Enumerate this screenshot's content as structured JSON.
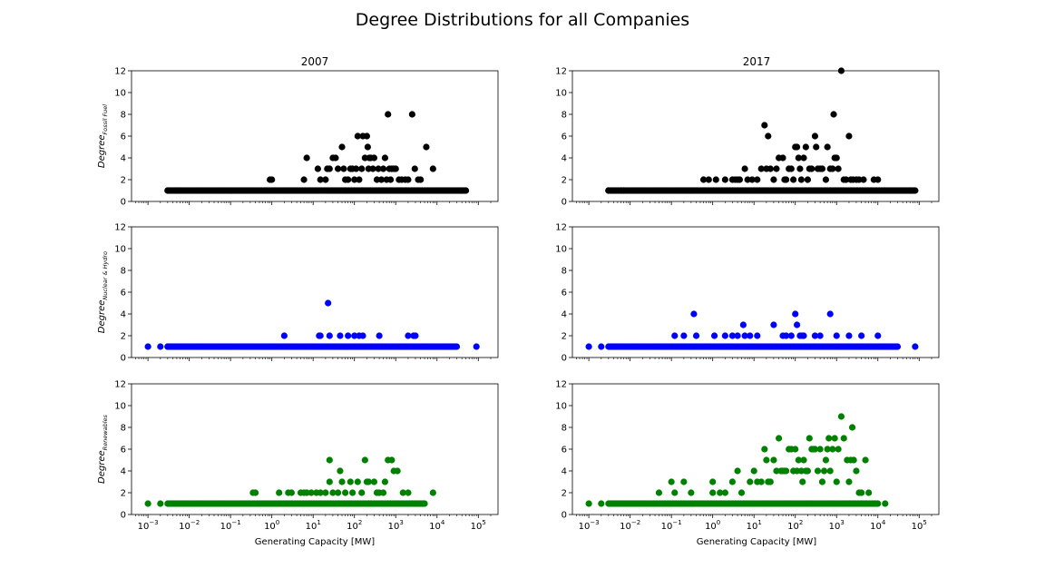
{
  "figure": {
    "suptitle": "Degree Distributions for all Companies",
    "column_titles": [
      "2007",
      "2017"
    ],
    "xlabel": "Generating Capacity [MW]",
    "row_ylabels": [
      {
        "base": "Degree",
        "sub": "Fossil Fuel"
      },
      {
        "base": "Degree",
        "sub": "Nuclear & Hydro"
      },
      {
        "base": "Degree",
        "sub": "Renewables"
      }
    ],
    "x_tick_labels": [
      {
        "base": "10",
        "exp": "−3"
      },
      {
        "base": "10",
        "exp": "−2"
      },
      {
        "base": "10",
        "exp": "−1"
      },
      {
        "base": "10",
        "exp": "0"
      },
      {
        "base": "10",
        "exp": "1"
      },
      {
        "base": "10",
        "exp": "2"
      },
      {
        "base": "10",
        "exp": "3"
      },
      {
        "base": "10",
        "exp": "4"
      },
      {
        "base": "10",
        "exp": "5"
      }
    ],
    "y_tick_labels": [
      "0",
      "2",
      "4",
      "6",
      "8",
      "10",
      "12"
    ]
  },
  "chart_data": [
    {
      "type": "scatter",
      "panel": "fossil-2007",
      "title": "2007",
      "ylabel": "Degree_{Fossil Fuel}",
      "xlabel": "",
      "xscale": "log",
      "xlim": [
        0.0004,
        300000
      ],
      "ylim": [
        0,
        12
      ],
      "color": "#000000",
      "baseline": {
        "y": 1,
        "xmin": 0.003,
        "xmax": 50000
      },
      "points": [
        [
          0.003,
          1
        ],
        [
          0.005,
          1
        ],
        [
          0.006,
          1
        ],
        [
          0.9,
          2
        ],
        [
          1,
          2
        ],
        [
          6,
          2
        ],
        [
          7,
          4
        ],
        [
          13,
          3
        ],
        [
          15,
          2
        ],
        [
          20,
          2
        ],
        [
          22,
          3
        ],
        [
          25,
          3
        ],
        [
          30,
          4
        ],
        [
          35,
          4
        ],
        [
          40,
          3
        ],
        [
          50,
          5
        ],
        [
          55,
          3
        ],
        [
          60,
          2
        ],
        [
          70,
          2
        ],
        [
          80,
          3
        ],
        [
          90,
          3
        ],
        [
          100,
          2
        ],
        [
          110,
          3
        ],
        [
          120,
          6
        ],
        [
          130,
          2
        ],
        [
          150,
          3
        ],
        [
          160,
          6
        ],
        [
          180,
          4
        ],
        [
          200,
          6
        ],
        [
          210,
          5
        ],
        [
          220,
          3
        ],
        [
          230,
          4
        ],
        [
          250,
          4
        ],
        [
          280,
          3
        ],
        [
          300,
          4
        ],
        [
          350,
          2
        ],
        [
          380,
          3
        ],
        [
          450,
          2
        ],
        [
          500,
          3
        ],
        [
          550,
          4
        ],
        [
          600,
          2
        ],
        [
          650,
          8
        ],
        [
          700,
          3
        ],
        [
          750,
          2
        ],
        [
          800,
          3
        ],
        [
          900,
          3
        ],
        [
          1000,
          3
        ],
        [
          1200,
          2
        ],
        [
          1400,
          2
        ],
        [
          1700,
          2
        ],
        [
          2000,
          2
        ],
        [
          2500,
          8
        ],
        [
          2900,
          3
        ],
        [
          3500,
          2
        ],
        [
          4000,
          2
        ],
        [
          5500,
          5
        ],
        [
          8000,
          3
        ]
      ]
    },
    {
      "type": "scatter",
      "panel": "fossil-2017",
      "title": "2017",
      "ylabel": "",
      "xlabel": "",
      "xscale": "log",
      "xlim": [
        0.0004,
        300000
      ],
      "ylim": [
        0,
        12
      ],
      "color": "#000000",
      "baseline": {
        "y": 1,
        "xmin": 0.003,
        "xmax": 80000
      },
      "points": [
        [
          0.003,
          1
        ],
        [
          0.006,
          1
        ],
        [
          0.007,
          1
        ],
        [
          0.6,
          2
        ],
        [
          0.8,
          2
        ],
        [
          1.2,
          2
        ],
        [
          2,
          2
        ],
        [
          3,
          2
        ],
        [
          3.5,
          2
        ],
        [
          4,
          2
        ],
        [
          4.5,
          2
        ],
        [
          6,
          3
        ],
        [
          7,
          2
        ],
        [
          9,
          2
        ],
        [
          12,
          2
        ],
        [
          15,
          3
        ],
        [
          18,
          7
        ],
        [
          20,
          3
        ],
        [
          22,
          6
        ],
        [
          25,
          3
        ],
        [
          30,
          2
        ],
        [
          35,
          3
        ],
        [
          40,
          4
        ],
        [
          50,
          4
        ],
        [
          55,
          2
        ],
        [
          60,
          2
        ],
        [
          70,
          3
        ],
        [
          80,
          3
        ],
        [
          90,
          2
        ],
        [
          100,
          5
        ],
        [
          110,
          5
        ],
        [
          120,
          4
        ],
        [
          130,
          3
        ],
        [
          140,
          2
        ],
        [
          160,
          4
        ],
        [
          180,
          5
        ],
        [
          200,
          2
        ],
        [
          220,
          3
        ],
        [
          250,
          3
        ],
        [
          300,
          6
        ],
        [
          320,
          5
        ],
        [
          350,
          3
        ],
        [
          400,
          3
        ],
        [
          450,
          3
        ],
        [
          550,
          2
        ],
        [
          600,
          5
        ],
        [
          700,
          3
        ],
        [
          800,
          3
        ],
        [
          850,
          8
        ],
        [
          900,
          4
        ],
        [
          1000,
          4
        ],
        [
          1100,
          3
        ],
        [
          1300,
          12
        ],
        [
          1500,
          2
        ],
        [
          1700,
          2
        ],
        [
          2000,
          6
        ],
        [
          2200,
          2
        ],
        [
          2500,
          2
        ],
        [
          3000,
          2
        ],
        [
          3500,
          2
        ],
        [
          4500,
          2
        ],
        [
          8000,
          2
        ],
        [
          10000,
          2
        ],
        [
          60000,
          1
        ]
      ]
    },
    {
      "type": "scatter",
      "panel": "nuclear-hydro-2007",
      "title": "",
      "ylabel": "Degree_{Nuclear & Hydro}",
      "xlabel": "",
      "xscale": "log",
      "xlim": [
        0.0004,
        300000
      ],
      "ylim": [
        0,
        12
      ],
      "color": "#0000ff",
      "baseline": {
        "y": 1,
        "xmin": 0.003,
        "xmax": 30000
      },
      "points": [
        [
          0.001,
          1
        ],
        [
          0.002,
          1
        ],
        [
          0.003,
          1
        ],
        [
          2,
          2
        ],
        [
          14,
          2
        ],
        [
          15,
          2
        ],
        [
          23,
          5
        ],
        [
          25,
          2
        ],
        [
          45,
          2
        ],
        [
          70,
          2
        ],
        [
          100,
          2
        ],
        [
          130,
          2
        ],
        [
          160,
          2
        ],
        [
          400,
          2
        ],
        [
          2000,
          2
        ],
        [
          2700,
          2
        ],
        [
          3000,
          2
        ],
        [
          90000,
          1
        ]
      ]
    },
    {
      "type": "scatter",
      "panel": "nuclear-hydro-2017",
      "title": "",
      "ylabel": "",
      "xlabel": "",
      "xscale": "log",
      "xlim": [
        0.0004,
        300000
      ],
      "ylim": [
        0,
        12
      ],
      "color": "#0000ff",
      "baseline": {
        "y": 1,
        "xmin": 0.003,
        "xmax": 30000
      },
      "points": [
        [
          0.001,
          1
        ],
        [
          0.002,
          1
        ],
        [
          0.12,
          2
        ],
        [
          0.2,
          2
        ],
        [
          0.35,
          4
        ],
        [
          0.4,
          2
        ],
        [
          1.1,
          2
        ],
        [
          2,
          2
        ],
        [
          3,
          2
        ],
        [
          4,
          2
        ],
        [
          5.5,
          3
        ],
        [
          6,
          2
        ],
        [
          8,
          2
        ],
        [
          12,
          2
        ],
        [
          30,
          3
        ],
        [
          50,
          2
        ],
        [
          60,
          2
        ],
        [
          80,
          2
        ],
        [
          100,
          4
        ],
        [
          110,
          3
        ],
        [
          130,
          2
        ],
        [
          150,
          2
        ],
        [
          160,
          2
        ],
        [
          300,
          2
        ],
        [
          400,
          2
        ],
        [
          700,
          4
        ],
        [
          1000,
          2
        ],
        [
          2000,
          2
        ],
        [
          4000,
          2
        ],
        [
          10000,
          2
        ],
        [
          80000,
          1
        ]
      ]
    },
    {
      "type": "scatter",
      "panel": "renewables-2007",
      "title": "",
      "ylabel": "Degree_{Renewables}",
      "xlabel": "Generating Capacity [MW]",
      "xscale": "log",
      "xlim": [
        0.0004,
        300000
      ],
      "ylim": [
        0,
        12
      ],
      "color": "#008000",
      "baseline": {
        "y": 1,
        "xmin": 0.003,
        "xmax": 5000
      },
      "points": [
        [
          0.001,
          1
        ],
        [
          0.002,
          1
        ],
        [
          0.35,
          2
        ],
        [
          0.4,
          2
        ],
        [
          1.5,
          2
        ],
        [
          2.5,
          2
        ],
        [
          3,
          2
        ],
        [
          5,
          2
        ],
        [
          6,
          2
        ],
        [
          7,
          2
        ],
        [
          9,
          2
        ],
        [
          12,
          2
        ],
        [
          15,
          2
        ],
        [
          20,
          2
        ],
        [
          25,
          5
        ],
        [
          25,
          3
        ],
        [
          30,
          2
        ],
        [
          40,
          2
        ],
        [
          45,
          4
        ],
        [
          50,
          3
        ],
        [
          60,
          2
        ],
        [
          80,
          3
        ],
        [
          90,
          2
        ],
        [
          120,
          3
        ],
        [
          150,
          2
        ],
        [
          180,
          5
        ],
        [
          200,
          3
        ],
        [
          220,
          3
        ],
        [
          300,
          3
        ],
        [
          350,
          2
        ],
        [
          400,
          2
        ],
        [
          500,
          2
        ],
        [
          550,
          3
        ],
        [
          650,
          5
        ],
        [
          800,
          5
        ],
        [
          900,
          4
        ],
        [
          1100,
          4
        ],
        [
          1500,
          2
        ],
        [
          2000,
          2
        ],
        [
          3000,
          1
        ],
        [
          8000,
          2
        ]
      ]
    },
    {
      "type": "scatter",
      "panel": "renewables-2017",
      "title": "",
      "ylabel": "",
      "xlabel": "Generating Capacity [MW]",
      "xscale": "log",
      "xlim": [
        0.0004,
        300000
      ],
      "ylim": [
        0,
        12
      ],
      "color": "#008000",
      "baseline": {
        "y": 1,
        "xmin": 0.003,
        "xmax": 10000
      },
      "points": [
        [
          0.001,
          1
        ],
        [
          0.002,
          1
        ],
        [
          0.05,
          2
        ],
        [
          0.1,
          3
        ],
        [
          0.12,
          2
        ],
        [
          0.2,
          3
        ],
        [
          0.3,
          2
        ],
        [
          1,
          3
        ],
        [
          1,
          2
        ],
        [
          1.5,
          2
        ],
        [
          2,
          2
        ],
        [
          3,
          3
        ],
        [
          4,
          4
        ],
        [
          5,
          2
        ],
        [
          8,
          3
        ],
        [
          10,
          4
        ],
        [
          12,
          3
        ],
        [
          15,
          3
        ],
        [
          18,
          6
        ],
        [
          20,
          5
        ],
        [
          22,
          3
        ],
        [
          25,
          3
        ],
        [
          30,
          5
        ],
        [
          35,
          4
        ],
        [
          40,
          7
        ],
        [
          45,
          4
        ],
        [
          50,
          4
        ],
        [
          55,
          4
        ],
        [
          60,
          4
        ],
        [
          70,
          6
        ],
        [
          80,
          6
        ],
        [
          90,
          4
        ],
        [
          100,
          6
        ],
        [
          110,
          4
        ],
        [
          120,
          5
        ],
        [
          140,
          4
        ],
        [
          150,
          3
        ],
        [
          160,
          5
        ],
        [
          180,
          4
        ],
        [
          200,
          4
        ],
        [
          220,
          7
        ],
        [
          250,
          6
        ],
        [
          280,
          6
        ],
        [
          300,
          6
        ],
        [
          350,
          4
        ],
        [
          400,
          6
        ],
        [
          450,
          3
        ],
        [
          500,
          4
        ],
        [
          550,
          5
        ],
        [
          600,
          6
        ],
        [
          650,
          7
        ],
        [
          700,
          4
        ],
        [
          800,
          6
        ],
        [
          900,
          7
        ],
        [
          1000,
          3
        ],
        [
          1100,
          6
        ],
        [
          1300,
          9
        ],
        [
          1500,
          7
        ],
        [
          1800,
          5
        ],
        [
          2000,
          3
        ],
        [
          2200,
          5
        ],
        [
          2400,
          8
        ],
        [
          2600,
          5
        ],
        [
          3000,
          4
        ],
        [
          3500,
          2
        ],
        [
          4000,
          2
        ],
        [
          5000,
          5
        ],
        [
          6000,
          2
        ],
        [
          15000,
          1
        ]
      ]
    }
  ]
}
